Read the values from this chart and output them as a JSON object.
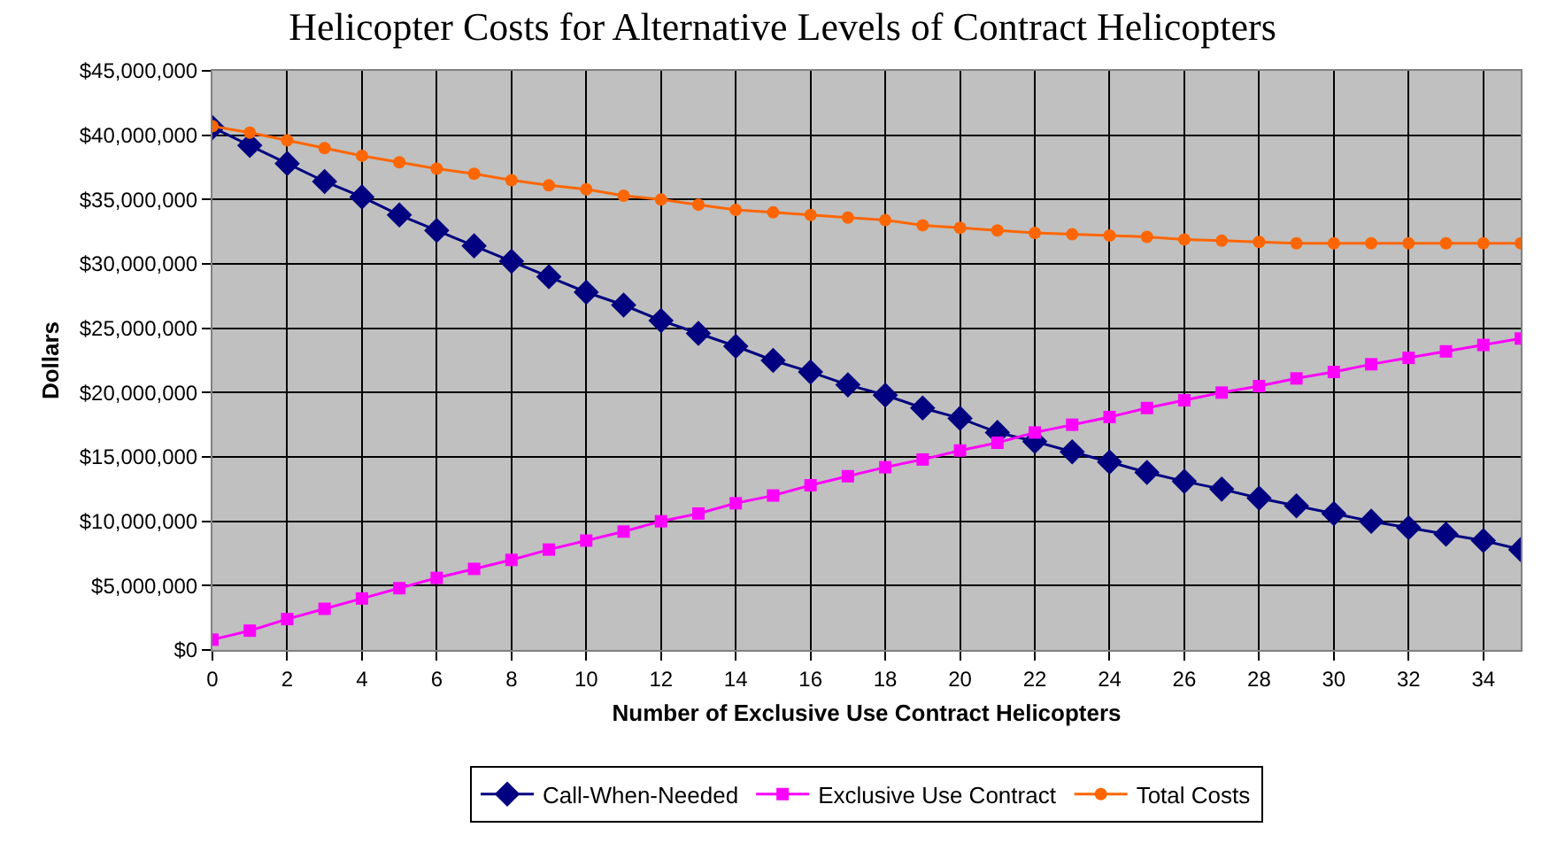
{
  "chart_data": {
    "type": "line",
    "title": "Helicopter Costs for Alternative Levels of Contract Helicopters",
    "xlabel": "Number of Exclusive Use Contract Helicopters",
    "ylabel": "Dollars",
    "x": [
      0,
      1,
      2,
      3,
      4,
      5,
      6,
      7,
      8,
      9,
      10,
      11,
      12,
      13,
      14,
      15,
      16,
      17,
      18,
      19,
      20,
      21,
      22,
      23,
      24,
      25,
      26,
      27,
      28,
      29,
      30,
      31,
      32,
      33,
      34,
      35
    ],
    "series": [
      {
        "name": "Call-When-Needed",
        "color": "#000080",
        "marker": "diamond",
        "values": [
          40600000,
          39200000,
          37800000,
          36400000,
          35200000,
          33800000,
          32600000,
          31400000,
          30200000,
          29000000,
          27800000,
          26800000,
          25600000,
          24600000,
          23600000,
          22500000,
          21600000,
          20600000,
          19800000,
          18800000,
          18000000,
          16900000,
          16200000,
          15400000,
          14600000,
          13800000,
          13100000,
          12500000,
          11800000,
          11200000,
          10600000,
          10000000,
          9500000,
          9000000,
          8500000,
          7800000
        ]
      },
      {
        "name": "Exclusive Use Contract",
        "color": "#ff00ff",
        "marker": "square",
        "values": [
          800000,
          1500000,
          2400000,
          3200000,
          4000000,
          4800000,
          5600000,
          6300000,
          7000000,
          7800000,
          8500000,
          9200000,
          10000000,
          10600000,
          11400000,
          12000000,
          12800000,
          13500000,
          14200000,
          14800000,
          15500000,
          16100000,
          16900000,
          17500000,
          18100000,
          18800000,
          19400000,
          20000000,
          20500000,
          21100000,
          21600000,
          22200000,
          22700000,
          23200000,
          23700000,
          24200000
        ]
      },
      {
        "name": "Total Costs",
        "color": "#ff6600",
        "marker": "circle",
        "values": [
          40700000,
          40200000,
          39600000,
          39000000,
          38400000,
          37900000,
          37400000,
          37000000,
          36500000,
          36100000,
          35800000,
          35300000,
          35000000,
          34600000,
          34200000,
          34000000,
          33800000,
          33600000,
          33400000,
          33000000,
          32800000,
          32600000,
          32400000,
          32300000,
          32200000,
          32100000,
          31900000,
          31800000,
          31700000,
          31600000,
          31600000,
          31600000,
          31600000,
          31600000,
          31600000,
          31600000
        ]
      }
    ],
    "xlim": [
      0,
      35
    ],
    "xticks": [
      0,
      2,
      4,
      6,
      8,
      10,
      12,
      14,
      16,
      18,
      20,
      22,
      24,
      26,
      28,
      30,
      32,
      34
    ],
    "ylim": [
      0,
      45000000
    ],
    "yticks": [
      {
        "value": 0,
        "label": "$0"
      },
      {
        "value": 5000000,
        "label": "$5,000,000"
      },
      {
        "value": 10000000,
        "label": "$10,000,000"
      },
      {
        "value": 15000000,
        "label": "$15,000,000"
      },
      {
        "value": 20000000,
        "label": "$20,000,000"
      },
      {
        "value": 25000000,
        "label": "$25,000,000"
      },
      {
        "value": 30000000,
        "label": "$30,000,000"
      },
      {
        "value": 35000000,
        "label": "$35,000,000"
      },
      {
        "value": 40000000,
        "label": "$40,000,000"
      },
      {
        "value": 45000000,
        "label": "$45,000,000"
      }
    ],
    "grid": true,
    "legend": "bottom",
    "line_style": "solid"
  }
}
